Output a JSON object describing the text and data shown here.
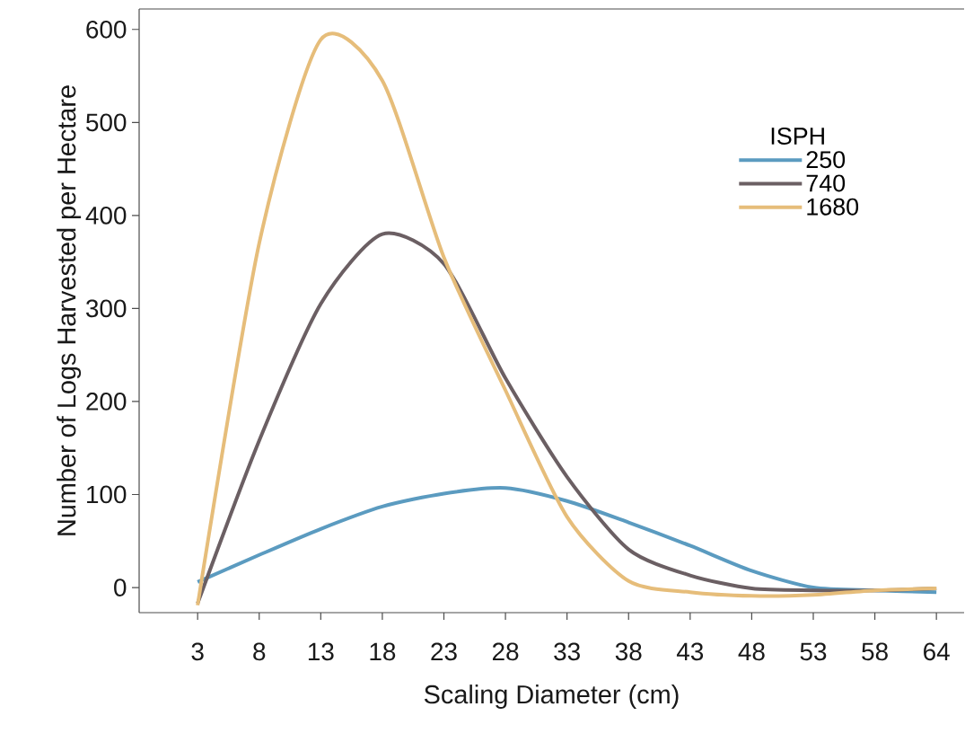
{
  "chart_data": {
    "type": "line",
    "xlabel": "Scaling Diameter (cm)",
    "ylabel": "Number of Logs Harvested per Hectare",
    "legend_title": "ISPH",
    "legend": "top right",
    "marker": "none",
    "line_style": "solid",
    "categories": [
      "3",
      "8",
      "13",
      "18",
      "23",
      "28",
      "33",
      "38",
      "43",
      "48",
      "53",
      "58",
      "64"
    ],
    "ylim": [
      -27,
      622
    ],
    "yticks": [
      0,
      100,
      200,
      300,
      400,
      500,
      600
    ],
    "series": [
      {
        "name": "250",
        "color": "#5b9bc0",
        "values": [
          6,
          35,
          63,
          87,
          101,
          107,
          93,
          70,
          45,
          18,
          0,
          -3,
          -5
        ]
      },
      {
        "name": "740",
        "color": "#6b5f63",
        "values": [
          -17,
          158,
          305,
          380,
          348,
          225,
          119,
          41,
          13,
          -1,
          -3,
          -3,
          -1
        ]
      },
      {
        "name": "1680",
        "color": "#e6bd7a",
        "values": [
          -19,
          370,
          589,
          545,
          355,
          212,
          76,
          7,
          -5,
          -9,
          -8,
          -3,
          -1
        ]
      }
    ]
  }
}
